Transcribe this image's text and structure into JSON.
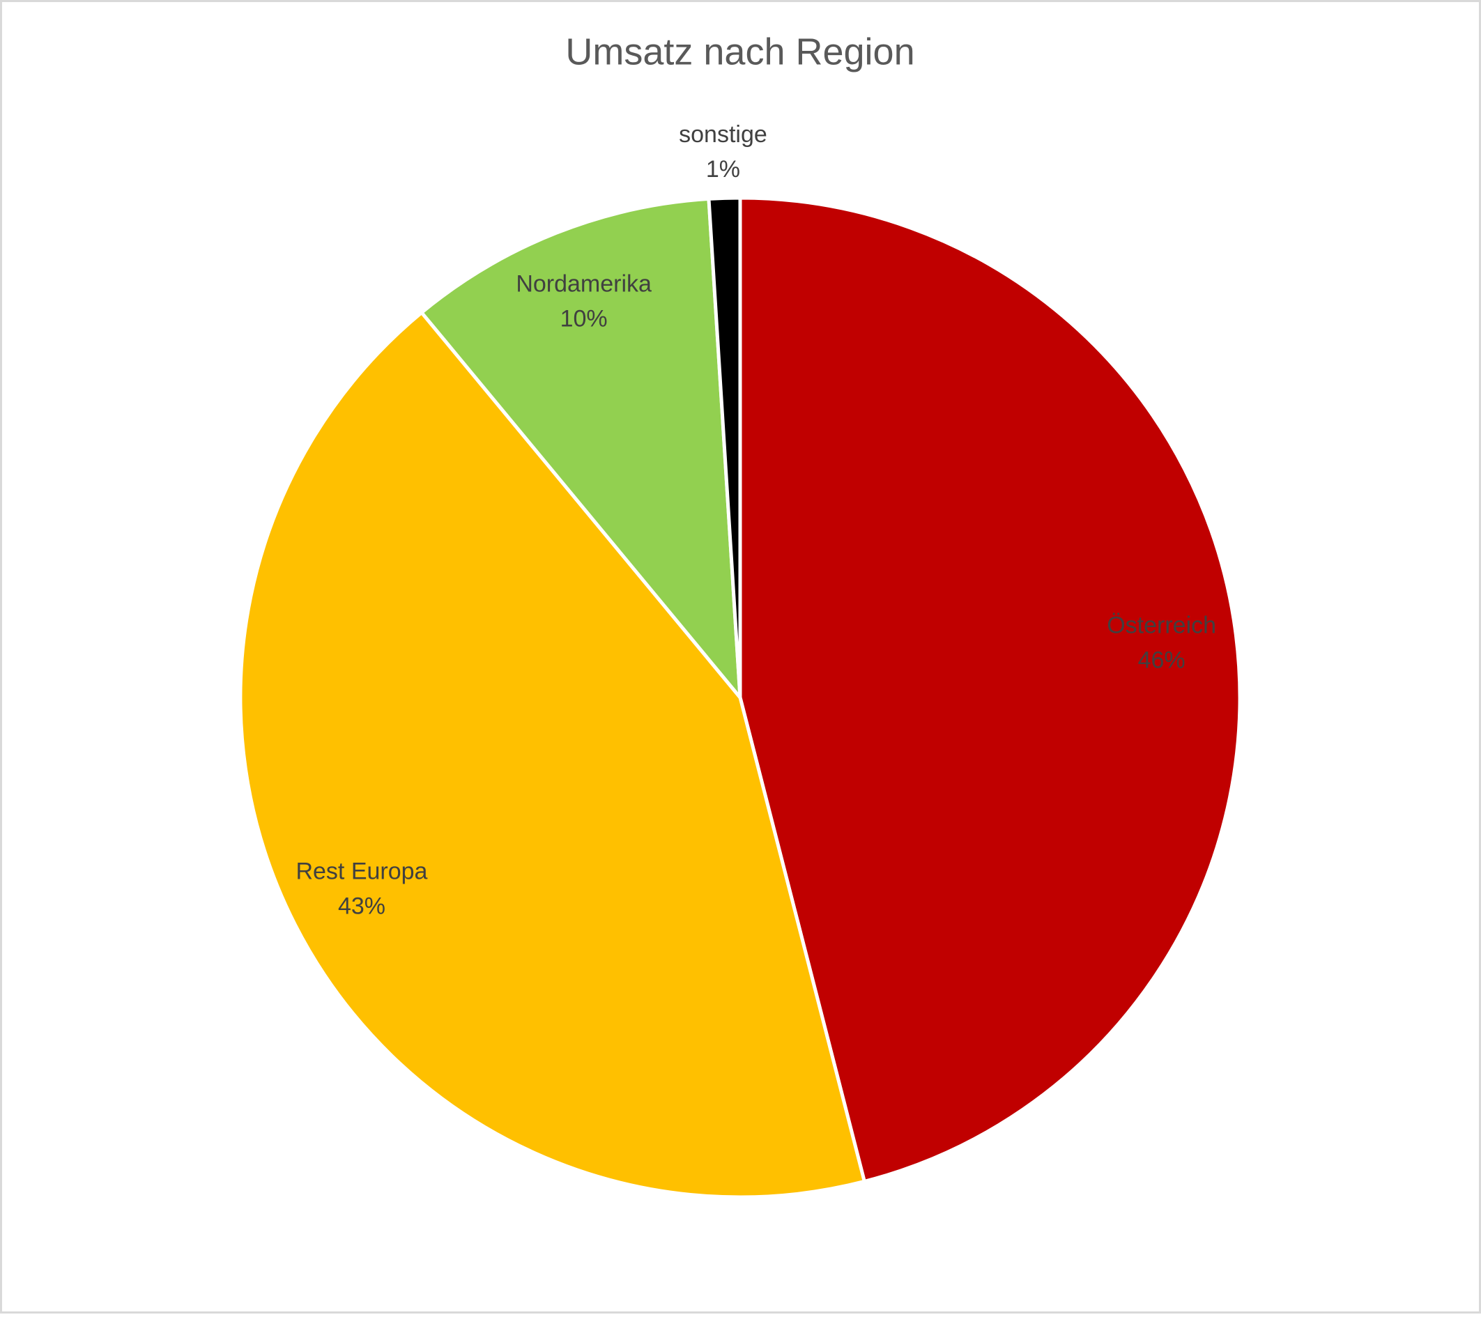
{
  "chart_data": {
    "type": "pie",
    "title": "Umsatz nach Region",
    "categories": [
      "Österreich",
      "Rest Europa",
      "Nordamerika",
      "sonstige"
    ],
    "values": [
      46,
      43,
      10,
      1
    ],
    "value_labels": [
      "46%",
      "43%",
      "10%",
      "1%"
    ],
    "colors": [
      "#c00000",
      "#ffc000",
      "#92d050",
      "#000000"
    ]
  }
}
